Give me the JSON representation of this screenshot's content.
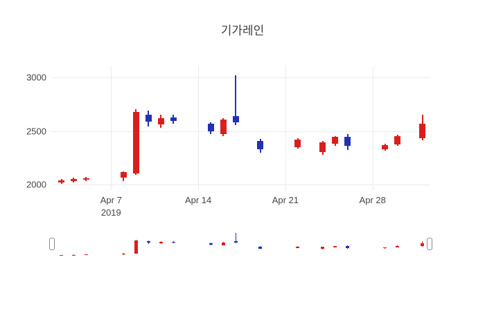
{
  "chart_data": {
    "type": "candlestick",
    "title": "기가레인",
    "legend": "none",
    "grid": "on",
    "colors": {
      "increasing": "#d91e1e",
      "decreasing": "#2330b4"
    },
    "y_ticks": [
      2000,
      2500,
      3000
    ],
    "y_range": [
      1950,
      3110
    ],
    "x_range": [
      "2019-04-02T06:00:00Z",
      "2019-05-02T14:00:00Z"
    ],
    "x_ticks": [
      {
        "date": "2019-04-07",
        "label": "Apr 7",
        "sublabel": "2019"
      },
      {
        "date": "2019-04-14",
        "label": "Apr 14",
        "sublabel": ""
      },
      {
        "date": "2019-04-21",
        "label": "Apr 21",
        "sublabel": ""
      },
      {
        "date": "2019-04-28",
        "label": "Apr 28",
        "sublabel": ""
      }
    ],
    "candles": [
      {
        "date": "2019-04-03",
        "open": 2020,
        "high": 2055,
        "low": 2005,
        "close": 2040
      },
      {
        "date": "2019-04-04",
        "open": 2035,
        "high": 2065,
        "low": 2020,
        "close": 2055
      },
      {
        "date": "2019-04-05",
        "open": 2045,
        "high": 2075,
        "low": 2035,
        "close": 2060
      },
      {
        "date": "2019-04-08",
        "open": 2065,
        "high": 2125,
        "low": 2030,
        "close": 2115
      },
      {
        "date": "2019-04-09",
        "open": 2105,
        "high": 2705,
        "low": 2090,
        "close": 2680
      },
      {
        "date": "2019-04-10",
        "open": 2655,
        "high": 2690,
        "low": 2545,
        "close": 2585
      },
      {
        "date": "2019-04-11",
        "open": 2560,
        "high": 2655,
        "low": 2530,
        "close": 2620
      },
      {
        "date": "2019-04-12",
        "open": 2630,
        "high": 2650,
        "low": 2570,
        "close": 2595
      },
      {
        "date": "2019-04-15",
        "open": 2570,
        "high": 2585,
        "low": 2470,
        "close": 2495
      },
      {
        "date": "2019-04-16",
        "open": 2475,
        "high": 2620,
        "low": 2455,
        "close": 2605
      },
      {
        "date": "2019-04-17",
        "open": 2640,
        "high": 3020,
        "low": 2555,
        "close": 2580
      },
      {
        "date": "2019-04-19",
        "open": 2405,
        "high": 2425,
        "low": 2300,
        "close": 2330
      },
      {
        "date": "2019-04-22",
        "open": 2350,
        "high": 2435,
        "low": 2335,
        "close": 2420
      },
      {
        "date": "2019-04-24",
        "open": 2305,
        "high": 2410,
        "low": 2275,
        "close": 2395
      },
      {
        "date": "2019-04-25",
        "open": 2380,
        "high": 2455,
        "low": 2365,
        "close": 2445
      },
      {
        "date": "2019-04-26",
        "open": 2445,
        "high": 2475,
        "low": 2325,
        "close": 2360
      },
      {
        "date": "2019-04-29",
        "open": 2330,
        "high": 2385,
        "low": 2315,
        "close": 2370
      },
      {
        "date": "2019-04-30",
        "open": 2375,
        "high": 2465,
        "low": 2365,
        "close": 2450
      },
      {
        "date": "2019-05-02",
        "open": 2430,
        "high": 2655,
        "low": 2415,
        "close": 2570
      }
    ],
    "rangeslider": true
  }
}
